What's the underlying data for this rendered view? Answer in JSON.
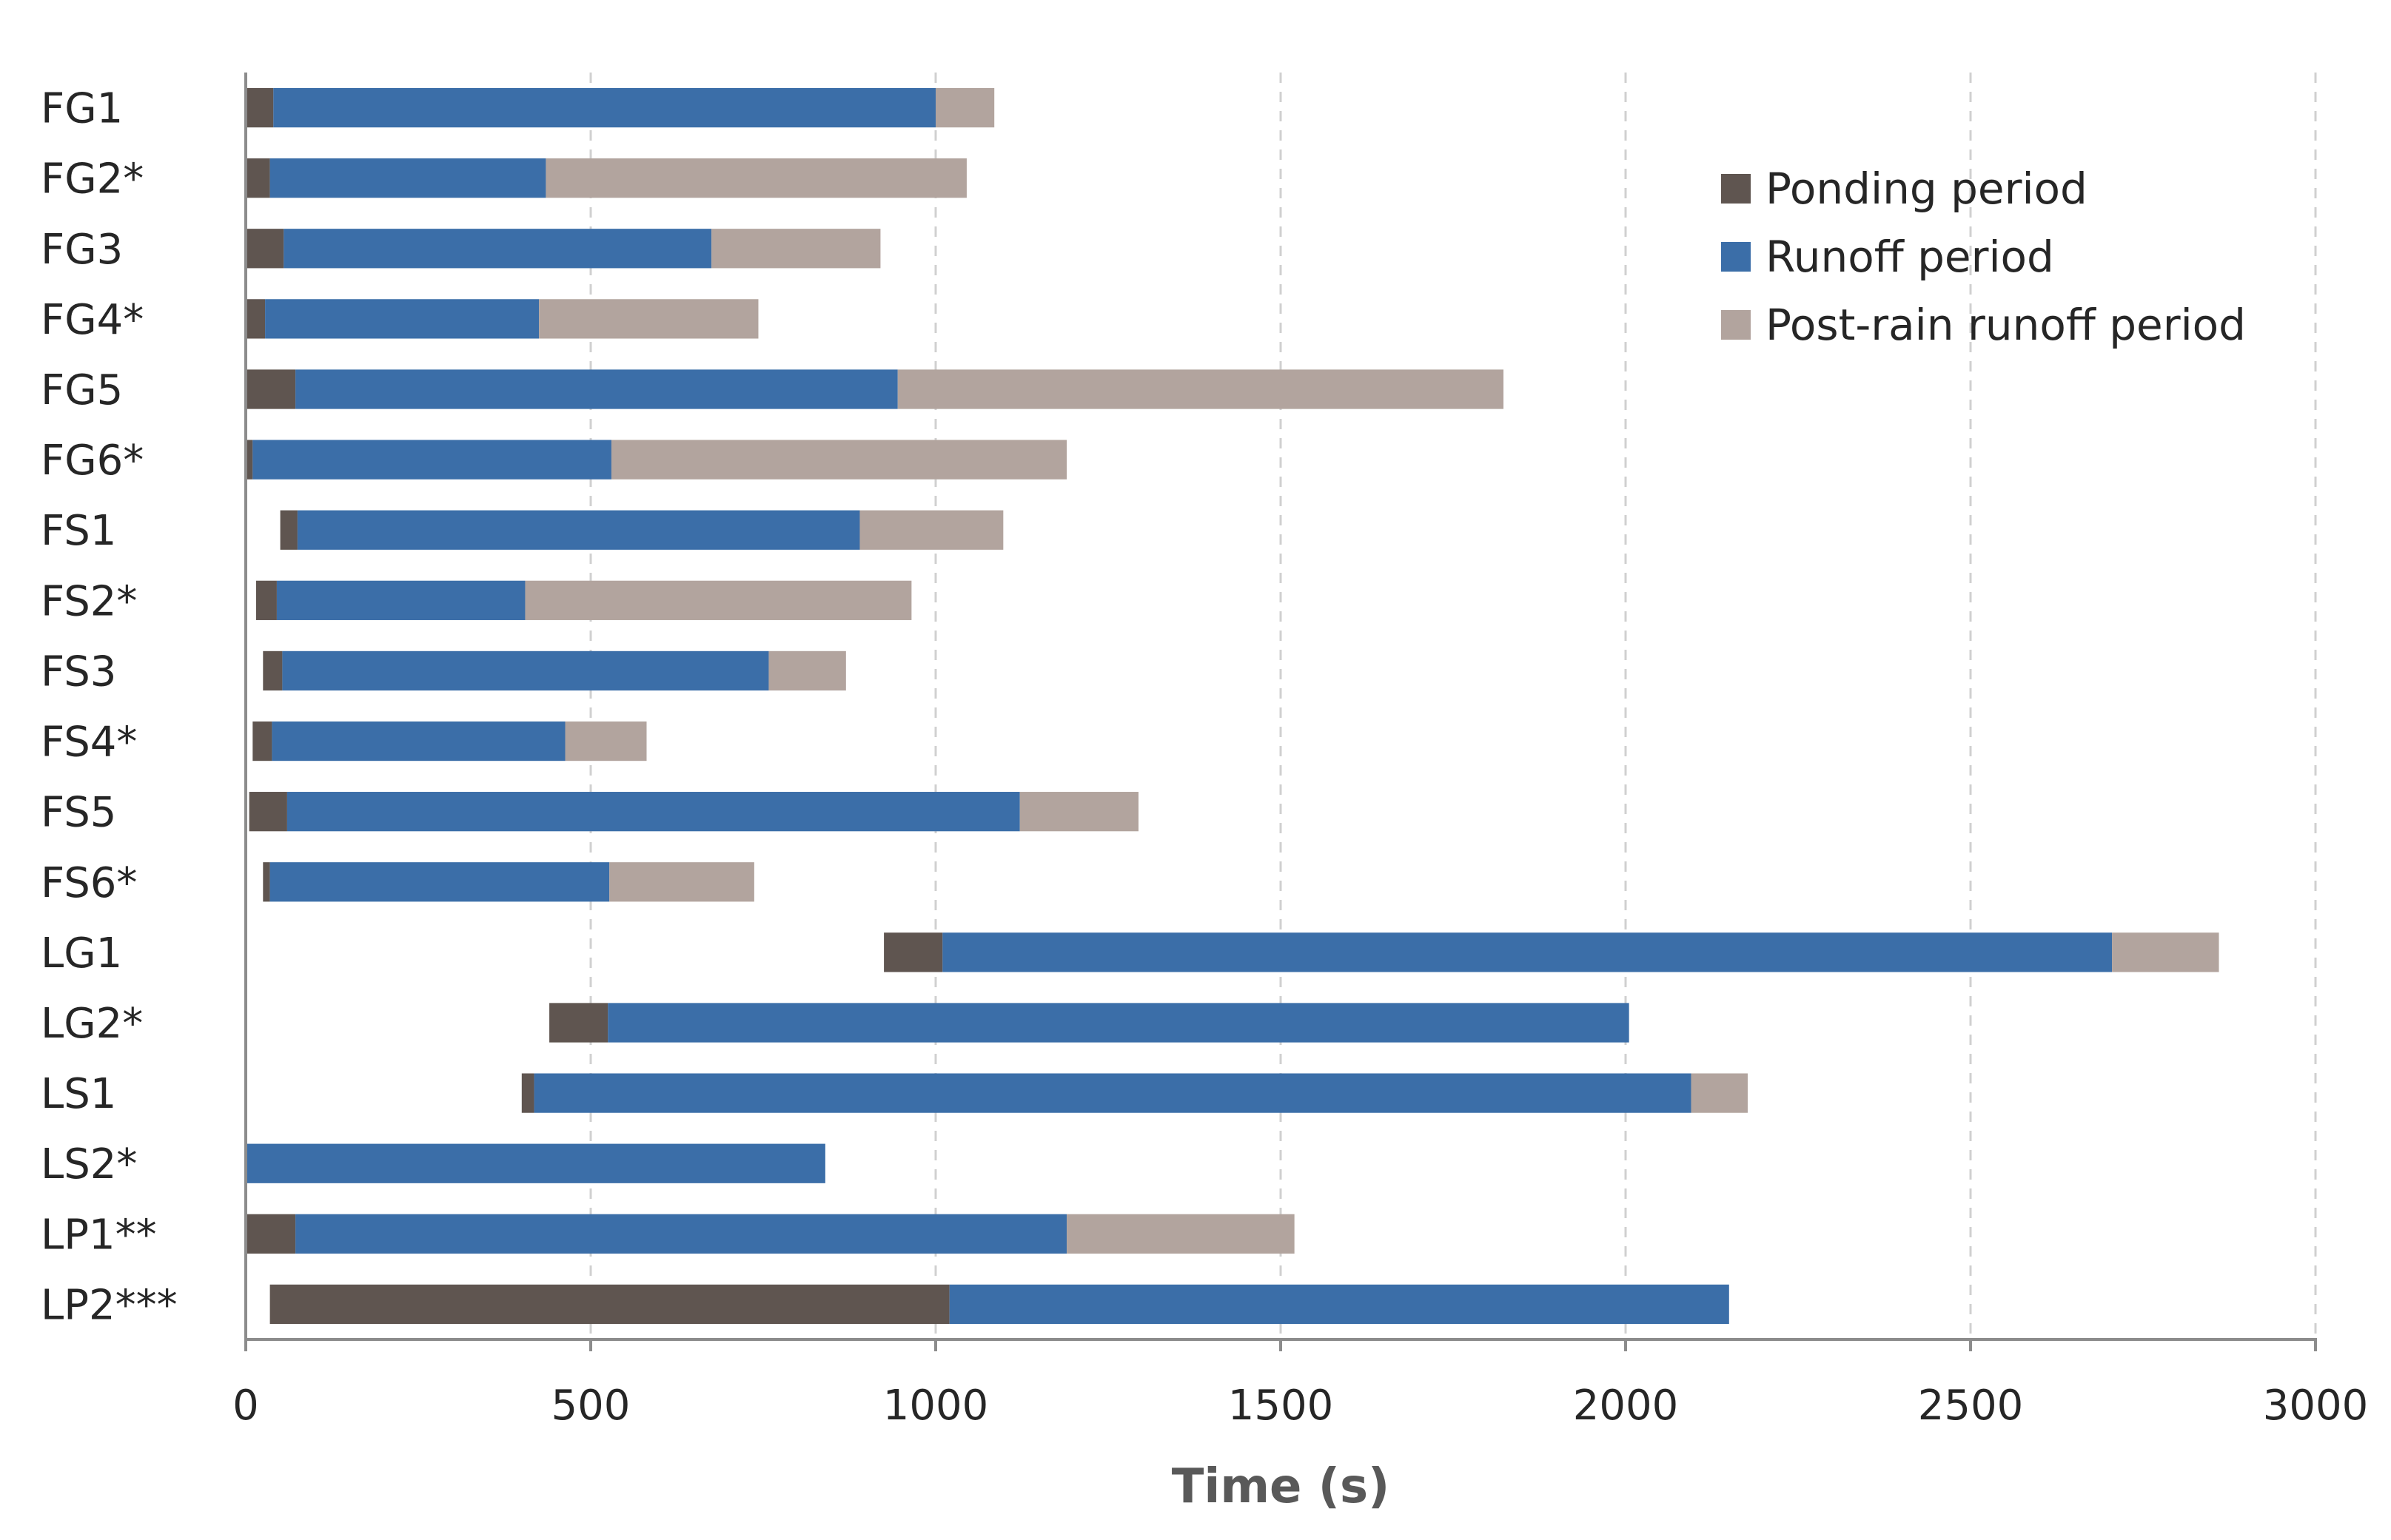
{
  "chart_data": {
    "type": "bar",
    "orientation": "horizontal",
    "stacked": true,
    "title": "",
    "xlabel": "Time (s)",
    "ylabel": "",
    "xlim": [
      0,
      3000
    ],
    "xticks": [
      0,
      500,
      1000,
      1500,
      2000,
      2500,
      3000
    ],
    "xtick_labels": [
      "0",
      "500",
      "1000",
      "1500",
      "2000",
      "2500",
      "3000"
    ],
    "grid": "vertical dashed",
    "legend_position": "top-right",
    "categories": [
      "FG1",
      "FG2*",
      "FG3",
      "FG4*",
      "FG5",
      "FG6*",
      "FS1",
      "FS2*",
      "FS3",
      "FS4*",
      "FS5",
      "FS6*",
      "LG1",
      "LG2*",
      "LS1",
      "LS2*",
      "LP1**",
      "LP2***"
    ],
    "start_offsets": [
      0,
      0,
      0,
      0,
      0,
      0,
      50,
      15,
      25,
      10,
      5,
      25,
      925,
      440,
      400,
      0,
      0,
      35
    ],
    "series": [
      {
        "name": "Ponding period",
        "color": "#5f5550",
        "values": [
          40,
          35,
          55,
          28,
          72,
          10,
          25,
          30,
          28,
          28,
          55,
          10,
          85,
          85,
          18,
          0,
          72,
          985
        ]
      },
      {
        "name": "Runoff period",
        "color": "#3b6ea8",
        "values": [
          960,
          400,
          620,
          397,
          873,
          520,
          815,
          360,
          705,
          425,
          1062,
          492,
          1695,
          1480,
          1677,
          840,
          1118,
          1130
        ]
      },
      {
        "name": "Post-rain runoff period",
        "color": "#b2a49e",
        "values": [
          85,
          610,
          245,
          318,
          878,
          660,
          208,
          560,
          112,
          118,
          172,
          210,
          155,
          0,
          82,
          0,
          330,
          0
        ]
      }
    ]
  }
}
